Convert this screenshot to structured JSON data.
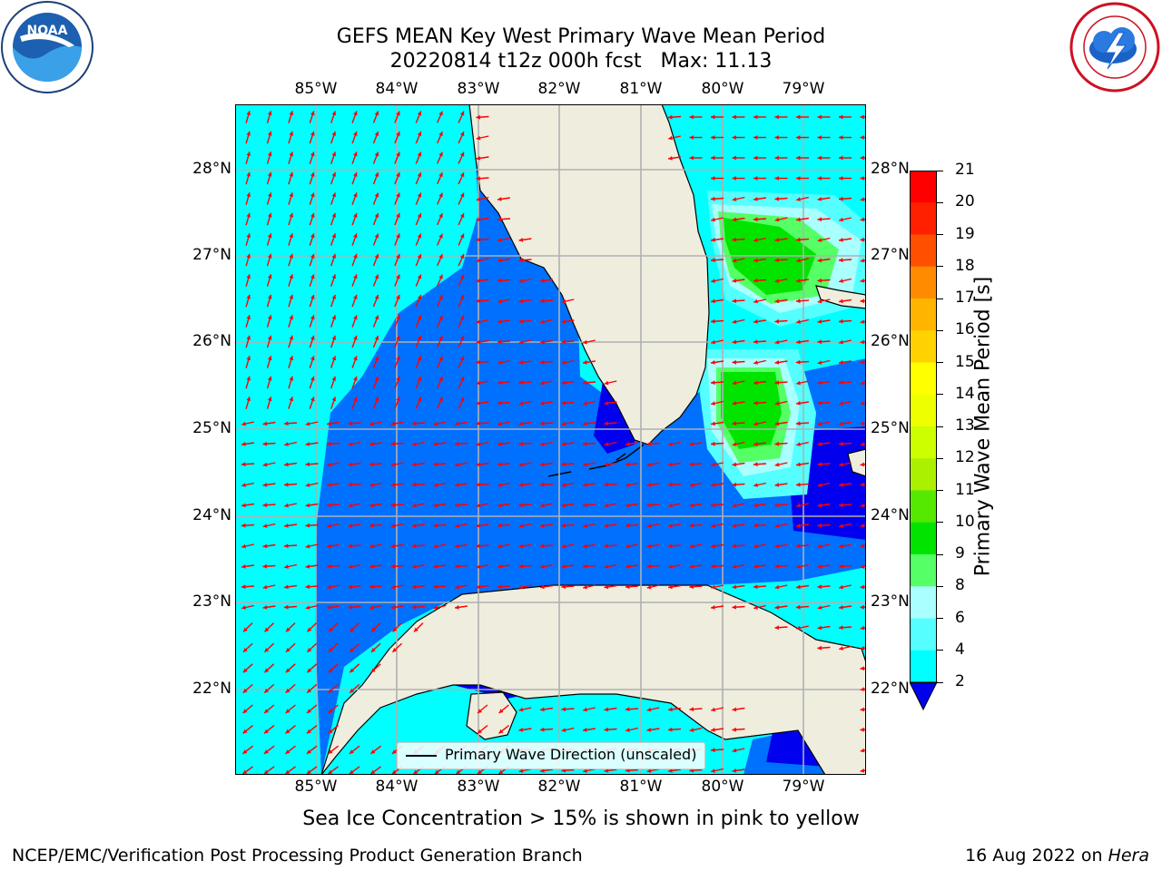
{
  "header": {
    "title_line1": "GEFS MEAN Key West Primary Wave Mean Period",
    "title_line2": "20220814 t12z 000h fcst   Max: 11.13"
  },
  "logos": {
    "left": {
      "icon": "noaa-logo",
      "text": "NOAA",
      "ring_text": "NATIONAL OCEANIC AND ATMOSPHERIC ADMINISTRATION · U.S. DEPARTMENT OF COMMERCE"
    },
    "right": {
      "icon": "national-weather-service-logo",
      "ring_text": "NATIONAL WEATHER SERVICE"
    }
  },
  "map": {
    "lon_labels": [
      "85°W",
      "84°W",
      "83°W",
      "82°W",
      "81°W",
      "80°W",
      "79°W"
    ],
    "lat_labels": [
      "28°N",
      "27°N",
      "26°N",
      "25°N",
      "24°N",
      "23°N",
      "22°N"
    ],
    "legend_label": "Primary Wave Direction (unscaled)",
    "colors": {
      "land": "#efedde",
      "grid": "#b0b0b0",
      "arrow": "#ff0000",
      "coast": "#000000"
    }
  },
  "colorbar": {
    "label": "Primary Wave Mean Period [s]",
    "ticks": [
      "2",
      "4",
      "6",
      "8",
      "9",
      "10",
      "11",
      "12",
      "13",
      "14",
      "15",
      "16",
      "17",
      "18",
      "19",
      "20",
      "21"
    ],
    "colors": [
      "#0070ff",
      "#00c8ff",
      "#00ffff",
      "#55ffff",
      "#aaffff",
      "#55ff66",
      "#00e400",
      "#55e800",
      "#aaf000",
      "#ccff00",
      "#eeff00",
      "#ffff00",
      "#ffd200",
      "#ffb400",
      "#ff8c00",
      "#ff5000",
      "#ff2000",
      "#ff0000"
    ],
    "under_color": "#0000ee"
  },
  "footer": {
    "caption": "Sea Ice Concentration > 15% is shown in pink to yellow",
    "left": "NCEP/EMC/Verification Post Processing Product Generation Branch",
    "right_prefix": "16 Aug 2022 on ",
    "right_machine": "Hera"
  }
}
